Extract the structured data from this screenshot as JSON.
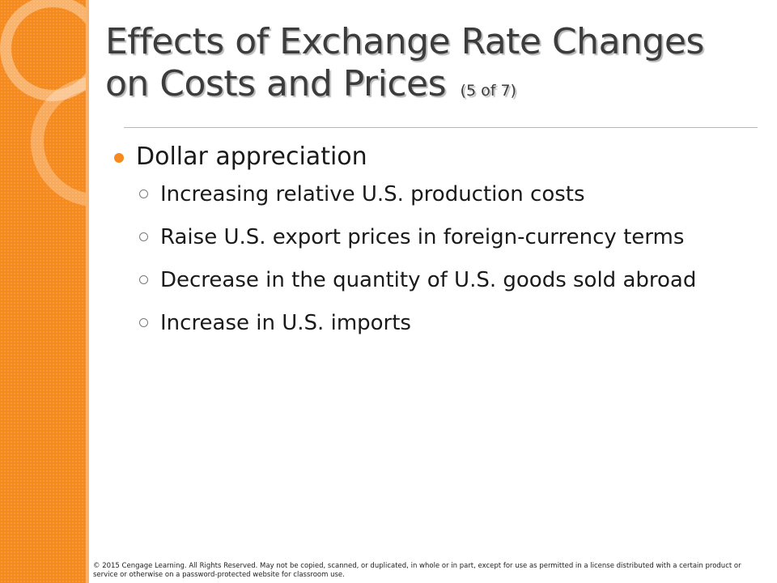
{
  "slide": {
    "title_line1": "Effects of Exchange Rate Changes",
    "title_line2": "on Costs and Prices",
    "title_counter": "(5 of 7)",
    "bullet": "Dollar appreciation",
    "sub_bullets": [
      "Increasing relative U.S. production costs",
      "Raise U.S. export prices in foreign-currency terms",
      "Decrease in the quantity of U.S. goods sold abroad",
      "Increase in U.S. imports"
    ],
    "footer": "© 2015 Cengage Learning. All Rights Reserved. May not be copied, scanned, or duplicated, in whole or in part, except for use as permitted in a license distributed with a certain product or service or otherwise on a password-protected website for classroom use."
  },
  "colors": {
    "accent": "#f58a1f",
    "title": "#3c3c3c",
    "text": "#1a1a1a"
  }
}
